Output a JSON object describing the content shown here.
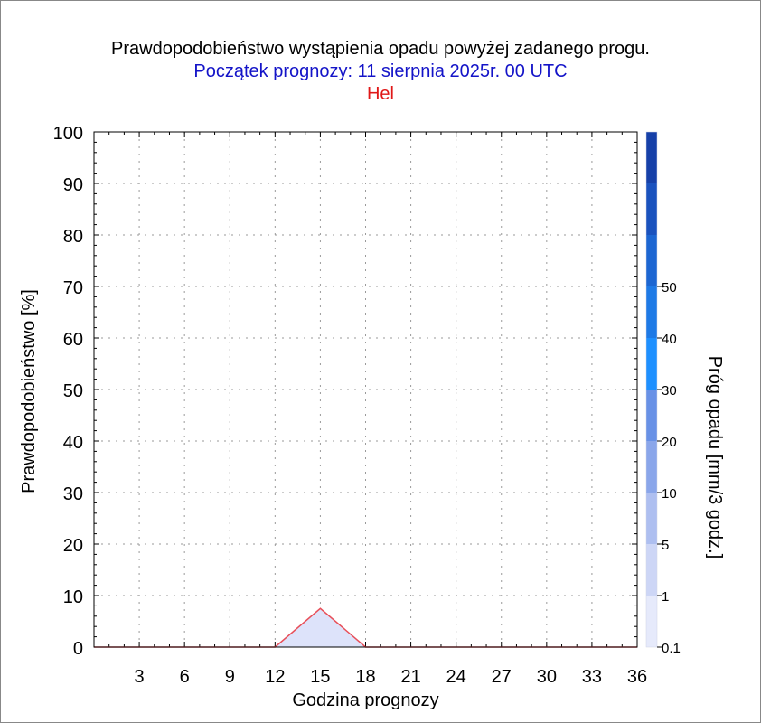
{
  "header": {
    "title": "Prawdopodobieństwo wystąpienia opadu powyżej zadanego progu.",
    "subtitle": "Początek prognozy: 11 sierpnia 2025r. 00 UTC",
    "location": "Hel"
  },
  "chart_data": {
    "type": "area",
    "xlabel": "Godzina prognozy",
    "ylabel": "Prawdopodobieństwo [%]",
    "xlim": [
      0,
      36
    ],
    "ylim": [
      0,
      100
    ],
    "x_ticks": [
      3,
      6,
      9,
      12,
      15,
      18,
      21,
      24,
      27,
      30,
      33,
      36
    ],
    "y_ticks": [
      0,
      10,
      20,
      30,
      40,
      50,
      60,
      70,
      80,
      90,
      100
    ],
    "grid": true,
    "series": [
      {
        "name": "0.1",
        "x": [
          0,
          3,
          6,
          9,
          12,
          15,
          18,
          21,
          24,
          27,
          30,
          33,
          36
        ],
        "y": [
          0,
          0,
          0,
          0,
          0,
          7.5,
          0,
          0,
          0,
          0,
          0,
          0,
          0
        ],
        "color": "#dde3fa",
        "line_color": "#e8505a"
      }
    ],
    "colorbar": {
      "label": "Próg opadu [mm/3 godz.]",
      "tick_labels": [
        "0.1",
        "1",
        "5",
        "10",
        "20",
        "30",
        "40",
        "50"
      ],
      "colors": [
        "#e6eafb",
        "#cdd6f6",
        "#aebff0",
        "#8aa6ea",
        "#6891e6",
        "#1e90ff",
        "#1e7ae6",
        "#1c66d2",
        "#1a52be",
        "#1640a8"
      ]
    }
  }
}
